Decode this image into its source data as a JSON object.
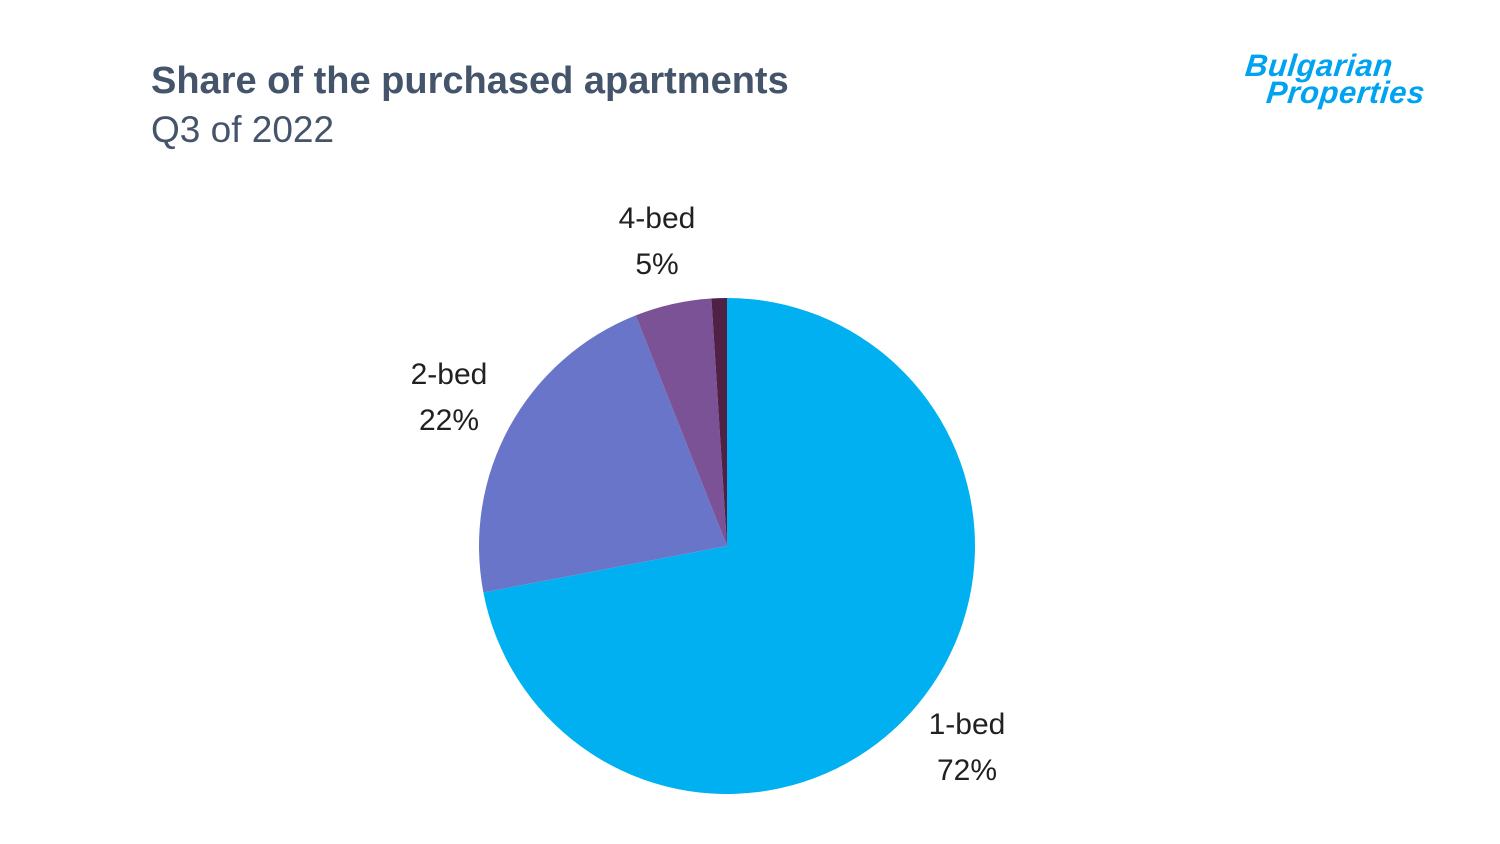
{
  "header": {
    "title": "Share of the purchased apartments",
    "subtitle": "Q3 of 2022",
    "title_color": "#44546a"
  },
  "logo": {
    "line1": "Bulgarian",
    "line2": "Properties",
    "color": "#00a3ef"
  },
  "chart_data": {
    "type": "pie",
    "title": "Share of the purchased apartments",
    "subtitle": "Q3 of 2022",
    "direction": "clockwise",
    "start_angle": "top",
    "legend_position": "none",
    "slices": [
      {
        "label": "1-bed",
        "value": 72,
        "pct_text": "72%",
        "color": "#00b0f0"
      },
      {
        "label": "2-bed",
        "value": 22,
        "pct_text": "22%",
        "color": "#6875c8"
      },
      {
        "label": "4-bed",
        "value": 5,
        "pct_text": "5%",
        "color": "#7b5295"
      },
      {
        "label": "",
        "value": 1,
        "pct_text": "",
        "color": "#4e2145"
      }
    ]
  }
}
